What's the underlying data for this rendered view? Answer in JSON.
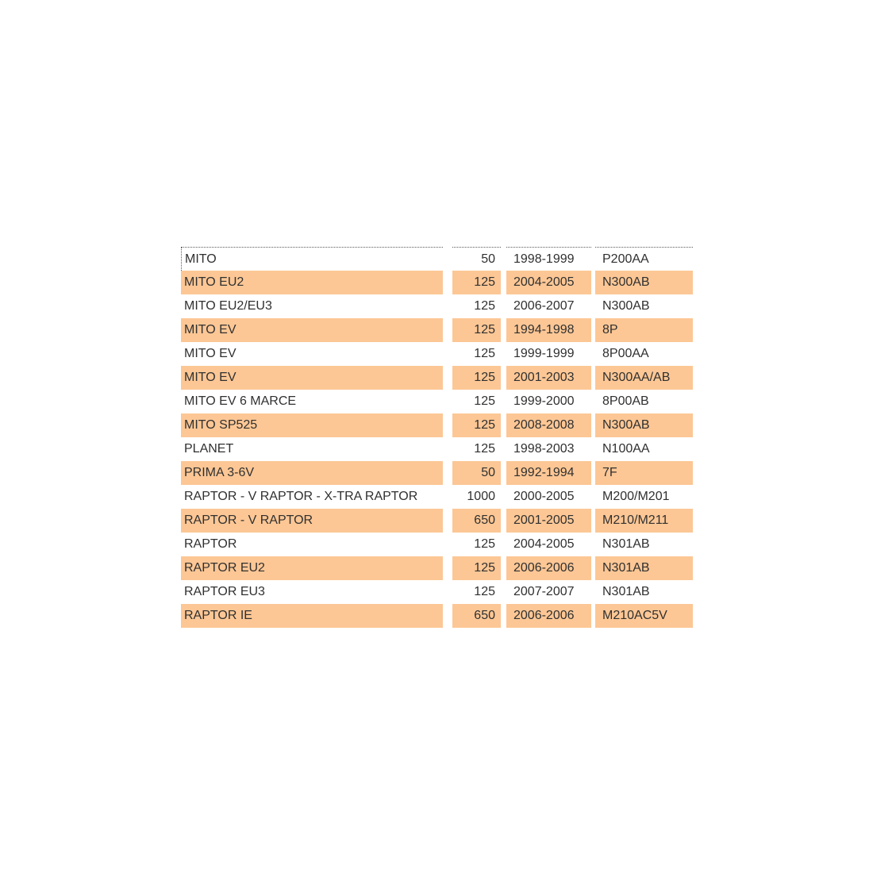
{
  "colors": {
    "row_highlight": "#fcc795",
    "text": "#303030",
    "background": "#ffffff",
    "focus_border": "#595959"
  },
  "table": {
    "focused_row_index": 0,
    "columns": [
      "model",
      "displacement",
      "years",
      "code"
    ],
    "rows": [
      {
        "model": "MITO",
        "displacement": "50",
        "years": "1998-1999",
        "code": "P200AA",
        "shaded": false
      },
      {
        "model": "MITO EU2",
        "displacement": "125",
        "years": "2004-2005",
        "code": "N300AB",
        "shaded": true
      },
      {
        "model": "MITO EU2/EU3",
        "displacement": "125",
        "years": "2006-2007",
        "code": "N300AB",
        "shaded": false
      },
      {
        "model": "MITO EV",
        "displacement": "125",
        "years": "1994-1998",
        "code": "8P",
        "shaded": true
      },
      {
        "model": "MITO EV",
        "displacement": "125",
        "years": "1999-1999",
        "code": "8P00AA",
        "shaded": false
      },
      {
        "model": "MITO EV",
        "displacement": "125",
        "years": "2001-2003",
        "code": "N300AA/AB",
        "shaded": true
      },
      {
        "model": "MITO EV 6 MARCE",
        "displacement": "125",
        "years": "1999-2000",
        "code": "8P00AB",
        "shaded": false
      },
      {
        "model": "MITO SP525",
        "displacement": "125",
        "years": "2008-2008",
        "code": "N300AB",
        "shaded": true
      },
      {
        "model": "PLANET",
        "displacement": "125",
        "years": "1998-2003",
        "code": "N100AA",
        "shaded": false
      },
      {
        "model": "PRIMA 3-6V",
        "displacement": "50",
        "years": "1992-1994",
        "code": "7F",
        "shaded": true
      },
      {
        "model": "RAPTOR - V RAPTOR - X-TRA RAPTOR",
        "displacement": "1000",
        "years": "2000-2005",
        "code": "M200/M201",
        "shaded": false
      },
      {
        "model": "RAPTOR - V RAPTOR",
        "displacement": "650",
        "years": "2001-2005",
        "code": "M210/M211",
        "shaded": true
      },
      {
        "model": "RAPTOR",
        "displacement": "125",
        "years": "2004-2005",
        "code": "N301AB",
        "shaded": false
      },
      {
        "model": "RAPTOR EU2",
        "displacement": "125",
        "years": "2006-2006",
        "code": "N301AB",
        "shaded": true
      },
      {
        "model": "RAPTOR EU3",
        "displacement": "125",
        "years": "2007-2007",
        "code": "N301AB",
        "shaded": false
      },
      {
        "model": "RAPTOR IE",
        "displacement": "650",
        "years": "2006-2006",
        "code": "M210AC5V",
        "shaded": true
      }
    ]
  }
}
